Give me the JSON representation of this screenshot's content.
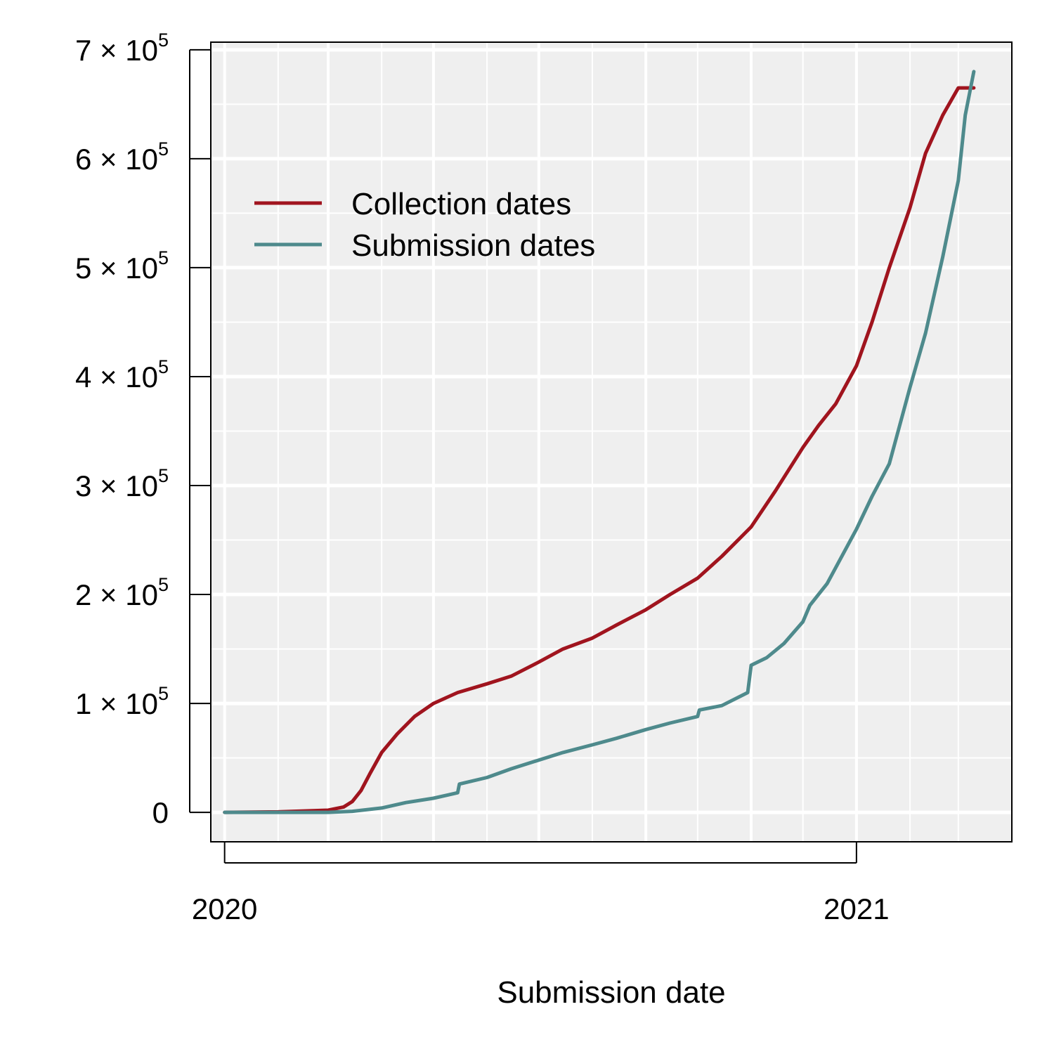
{
  "chart_data": {
    "type": "line",
    "title": "",
    "xlabel": "Submission date",
    "ylabel": "",
    "xlim": [
      "2019-12-24",
      "2021-04-01"
    ],
    "ylim": [
      -27000,
      707000
    ],
    "x_ticks": [
      {
        "date": "2020-01-01",
        "label": "2020"
      },
      {
        "date": "2021-01-01",
        "label": "2021"
      }
    ],
    "x_minor_grid": [
      "2020-02-01",
      "2020-04-01",
      "2020-06-01",
      "2020-08-01",
      "2020-10-01",
      "2020-12-01",
      "2021-02-01",
      "2021-03-01"
    ],
    "x_major_grid": [
      "2020-03-01",
      "2020-05-01",
      "2020-07-01",
      "2020-09-01",
      "2020-11-01"
    ],
    "y_ticks": [
      {
        "value": 0,
        "mantissa": "0",
        "exponent": ""
      },
      {
        "value": 100000,
        "mantissa": "1",
        "exponent": "5"
      },
      {
        "value": 200000,
        "mantissa": "2",
        "exponent": "5"
      },
      {
        "value": 300000,
        "mantissa": "3",
        "exponent": "5"
      },
      {
        "value": 400000,
        "mantissa": "4",
        "exponent": "5"
      },
      {
        "value": 500000,
        "mantissa": "5",
        "exponent": "5"
      },
      {
        "value": 600000,
        "mantissa": "6",
        "exponent": "5"
      },
      {
        "value": 700000,
        "mantissa": "7",
        "exponent": "5"
      }
    ],
    "times_sign": "×",
    "tick_base": "10",
    "grid": true,
    "legend_position": "top-left",
    "background_color": "#efefef",
    "series": [
      {
        "name": "Collection dates",
        "color": "#a0141e",
        "points": [
          [
            "2020-01-01",
            0
          ],
          [
            "2020-02-01",
            500
          ],
          [
            "2020-03-01",
            2000
          ],
          [
            "2020-03-10",
            5000
          ],
          [
            "2020-03-15",
            10000
          ],
          [
            "2020-03-20",
            20000
          ],
          [
            "2020-03-25",
            35000
          ],
          [
            "2020-04-01",
            55000
          ],
          [
            "2020-04-10",
            72000
          ],
          [
            "2020-04-20",
            88000
          ],
          [
            "2020-05-01",
            100000
          ],
          [
            "2020-05-15",
            110000
          ],
          [
            "2020-06-01",
            118000
          ],
          [
            "2020-06-15",
            125000
          ],
          [
            "2020-07-01",
            138000
          ],
          [
            "2020-07-15",
            150000
          ],
          [
            "2020-08-01",
            160000
          ],
          [
            "2020-08-15",
            172000
          ],
          [
            "2020-09-01",
            186000
          ],
          [
            "2020-09-15",
            200000
          ],
          [
            "2020-10-01",
            215000
          ],
          [
            "2020-10-15",
            235000
          ],
          [
            "2020-11-01",
            262000
          ],
          [
            "2020-11-15",
            295000
          ],
          [
            "2020-12-01",
            335000
          ],
          [
            "2020-12-10",
            355000
          ],
          [
            "2020-12-20",
            375000
          ],
          [
            "2021-01-01",
            410000
          ],
          [
            "2021-01-10",
            450000
          ],
          [
            "2021-01-20",
            500000
          ],
          [
            "2021-02-01",
            555000
          ],
          [
            "2021-02-10",
            605000
          ],
          [
            "2021-02-20",
            640000
          ],
          [
            "2021-03-01",
            665000
          ],
          [
            "2021-03-10",
            665000
          ]
        ]
      },
      {
        "name": "Submission dates",
        "color": "#4e8a8c",
        "points": [
          [
            "2020-01-01",
            0
          ],
          [
            "2020-03-01",
            0
          ],
          [
            "2020-03-15",
            1000
          ],
          [
            "2020-04-01",
            4000
          ],
          [
            "2020-04-15",
            9000
          ],
          [
            "2020-05-01",
            13000
          ],
          [
            "2020-05-15",
            18000
          ],
          [
            "2020-05-16",
            26000
          ],
          [
            "2020-06-01",
            32000
          ],
          [
            "2020-06-15",
            40000
          ],
          [
            "2020-07-01",
            48000
          ],
          [
            "2020-07-15",
            55000
          ],
          [
            "2020-08-01",
            62000
          ],
          [
            "2020-08-15",
            68000
          ],
          [
            "2020-09-01",
            76000
          ],
          [
            "2020-09-15",
            82000
          ],
          [
            "2020-10-01",
            88000
          ],
          [
            "2020-10-02",
            94000
          ],
          [
            "2020-10-15",
            98000
          ],
          [
            "2020-10-30",
            110000
          ],
          [
            "2020-11-01",
            135000
          ],
          [
            "2020-11-10",
            142000
          ],
          [
            "2020-11-20",
            155000
          ],
          [
            "2020-12-01",
            175000
          ],
          [
            "2020-12-05",
            190000
          ],
          [
            "2020-12-15",
            210000
          ],
          [
            "2021-01-01",
            260000
          ],
          [
            "2021-01-10",
            290000
          ],
          [
            "2021-01-20",
            320000
          ],
          [
            "2021-02-01",
            390000
          ],
          [
            "2021-02-10",
            440000
          ],
          [
            "2021-02-20",
            510000
          ],
          [
            "2021-03-01",
            580000
          ],
          [
            "2021-03-05",
            640000
          ],
          [
            "2021-03-10",
            680000
          ]
        ]
      }
    ]
  }
}
